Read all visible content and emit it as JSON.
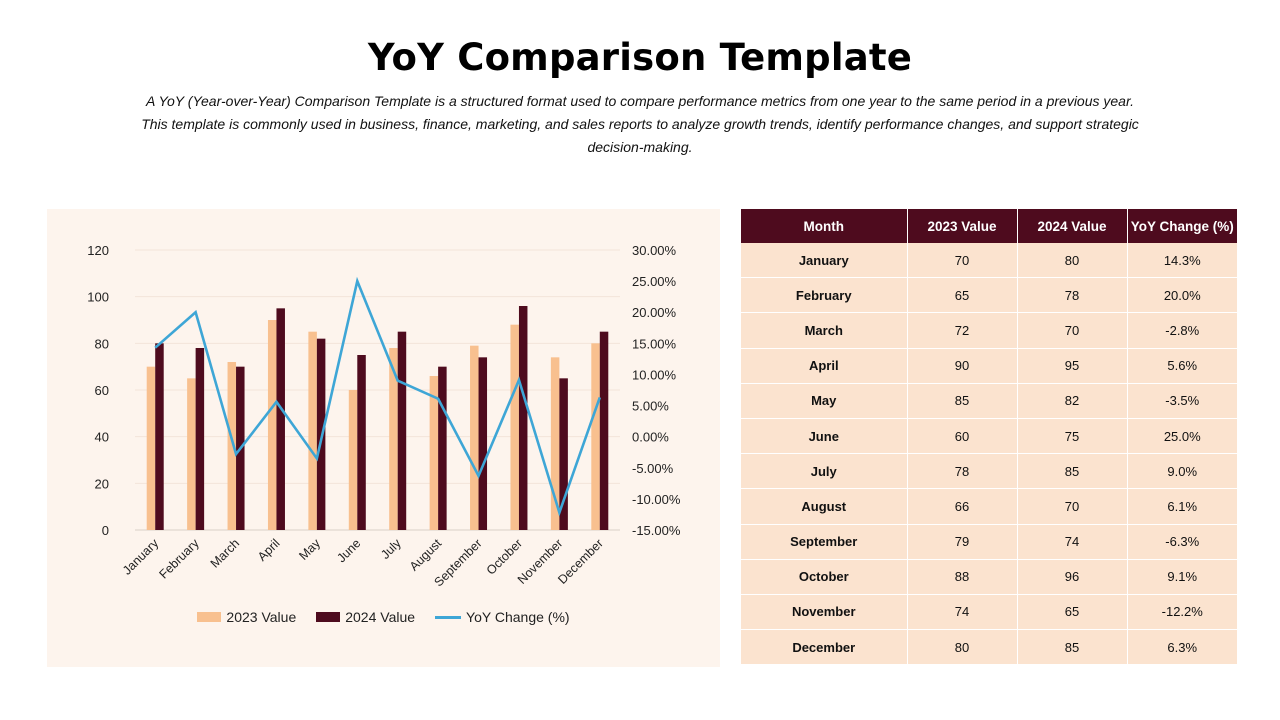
{
  "header": {
    "title": "YoY Comparison Template",
    "description": "A YoY (Year-over-Year) Comparison Template is a structured format used to compare performance metrics from one year to the same period in a previous year. This template is commonly used in business, finance, marketing, and sales reports to analyze growth trends, identify performance changes, and support strategic decision-making."
  },
  "colors": {
    "value_2023": "#f8c08f",
    "value_2024": "#4e0b1e",
    "yoy_line": "#3ea6d6",
    "panel_bg": "#fdf4ed",
    "table_header": "#4e0b1e",
    "table_cell": "#fbe3cf"
  },
  "chart_data": {
    "type": "bar",
    "categories": [
      "January",
      "February",
      "March",
      "April",
      "May",
      "June",
      "July",
      "August",
      "September",
      "October",
      "November",
      "December"
    ],
    "series": [
      {
        "name": "2023 Value",
        "type": "bar",
        "axis": "left",
        "values": [
          70,
          65,
          72,
          90,
          85,
          60,
          78,
          66,
          79,
          88,
          74,
          80
        ]
      },
      {
        "name": "2024 Value",
        "type": "bar",
        "axis": "left",
        "values": [
          80,
          78,
          70,
          95,
          82,
          75,
          85,
          70,
          74,
          96,
          65,
          85
        ]
      },
      {
        "name": "YoY Change (%)",
        "type": "line",
        "axis": "right",
        "values": [
          14.3,
          20.0,
          -2.8,
          5.6,
          -3.5,
          25.0,
          9.0,
          6.1,
          -6.3,
          9.1,
          -12.2,
          6.3
        ]
      }
    ],
    "ylim": [
      0,
      120
    ],
    "y_ticks": [
      "0",
      "20",
      "40",
      "60",
      "80",
      "100",
      "120"
    ],
    "y2lim": [
      -15,
      30
    ],
    "y2_ticks": [
      "-15.00%",
      "-10.00%",
      "-5.00%",
      "0.00%",
      "5.00%",
      "10.00%",
      "15.00%",
      "20.00%",
      "25.00%",
      "30.00%"
    ],
    "grid": true,
    "legend": {
      "position": "bottom",
      "labels": [
        "2023 Value",
        "2024 Value",
        "YoY Change (%)"
      ]
    }
  },
  "table": {
    "headers": [
      "Month",
      "2023 Value",
      "2024 Value",
      "YoY Change (%)"
    ],
    "rows": [
      [
        "January",
        "70",
        "80",
        "14.3%"
      ],
      [
        "February",
        "65",
        "78",
        "20.0%"
      ],
      [
        "March",
        "72",
        "70",
        "-2.8%"
      ],
      [
        "April",
        "90",
        "95",
        "5.6%"
      ],
      [
        "May",
        "85",
        "82",
        "-3.5%"
      ],
      [
        "June",
        "60",
        "75",
        "25.0%"
      ],
      [
        "July",
        "78",
        "85",
        "9.0%"
      ],
      [
        "August",
        "66",
        "70",
        "6.1%"
      ],
      [
        "September",
        "79",
        "74",
        "-6.3%"
      ],
      [
        "October",
        "88",
        "96",
        "9.1%"
      ],
      [
        "November",
        "74",
        "65",
        "-12.2%"
      ],
      [
        "December",
        "80",
        "85",
        "6.3%"
      ]
    ]
  }
}
